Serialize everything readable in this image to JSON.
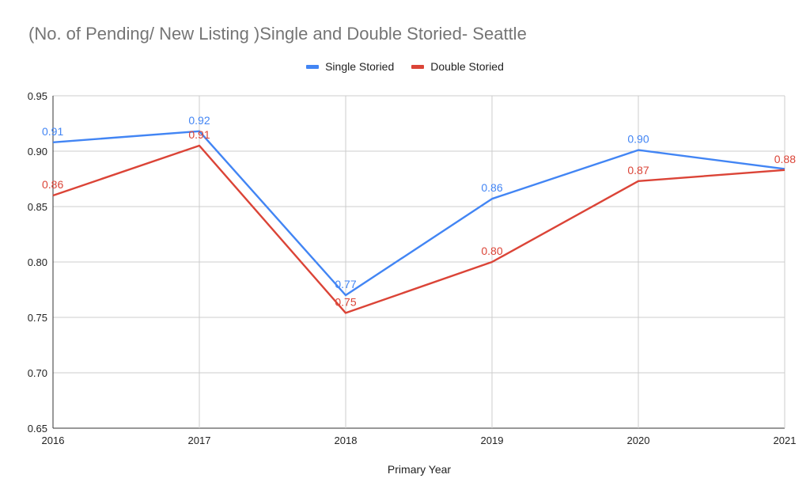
{
  "chart_data": {
    "type": "line",
    "title": "(No. of Pending/ New Listing )Single and Double Storied- Seattle",
    "xlabel": "Primary Year",
    "ylabel": "",
    "x": [
      "2016",
      "2017",
      "2018",
      "2019",
      "2020",
      "2021"
    ],
    "ylim": [
      0.65,
      0.95
    ],
    "yticks": [
      "0.65",
      "0.70",
      "0.75",
      "0.80",
      "0.85",
      "0.90",
      "0.95"
    ],
    "grid": true,
    "legend_position": "top",
    "series": [
      {
        "name": "Single Storied",
        "color": "#4285f4",
        "values": [
          0.908,
          0.918,
          0.77,
          0.857,
          0.901,
          0.884
        ],
        "labels": [
          "0.91",
          "0.92",
          "0.77",
          "0.86",
          "0.90",
          ""
        ]
      },
      {
        "name": "Double Storied",
        "color": "#db4437",
        "values": [
          0.86,
          0.905,
          0.754,
          0.8,
          0.873,
          0.883
        ],
        "labels": [
          "0.86",
          "0.91",
          "0.75",
          "0.80",
          "0.87",
          "0.88"
        ]
      }
    ]
  }
}
